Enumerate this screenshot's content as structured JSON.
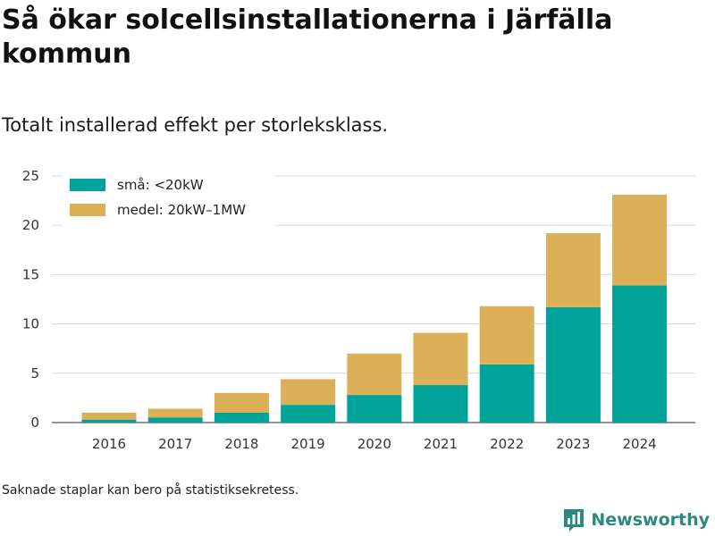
{
  "header": {
    "title": "Så ökar solcellsinstallationerna i Järfälla kommun",
    "subtitle": "Totalt installerad effekt per storleksklass."
  },
  "footer": {
    "note": "Saknade staplar kan bero på statistiksekretess.",
    "brand": "Newsworthy",
    "brand_icon": "bar-chart-icon"
  },
  "colors": {
    "small": "#00a39a",
    "medium": "#dbb058",
    "grid": "#d9d9d9",
    "brand": "#2a8a82"
  },
  "chart_data": {
    "type": "bar",
    "stacked": true,
    "categories": [
      "2016",
      "2017",
      "2018",
      "2019",
      "2020",
      "2021",
      "2022",
      "2023",
      "2024"
    ],
    "series": [
      {
        "name": "små: <20kW",
        "color": "#00a39a",
        "values": [
          0.3,
          0.5,
          1.0,
          1.8,
          2.8,
          3.8,
          5.9,
          11.7,
          13.9
        ]
      },
      {
        "name": "medel: 20kW–1MW",
        "color": "#dbb058",
        "values": [
          0.7,
          0.9,
          2.0,
          2.6,
          4.2,
          5.3,
          5.9,
          7.5,
          9.2
        ]
      }
    ],
    "ylim": [
      0,
      25
    ],
    "yticks": [
      0,
      5,
      10,
      15,
      20,
      25
    ],
    "grid": true,
    "legend": "top-left"
  }
}
